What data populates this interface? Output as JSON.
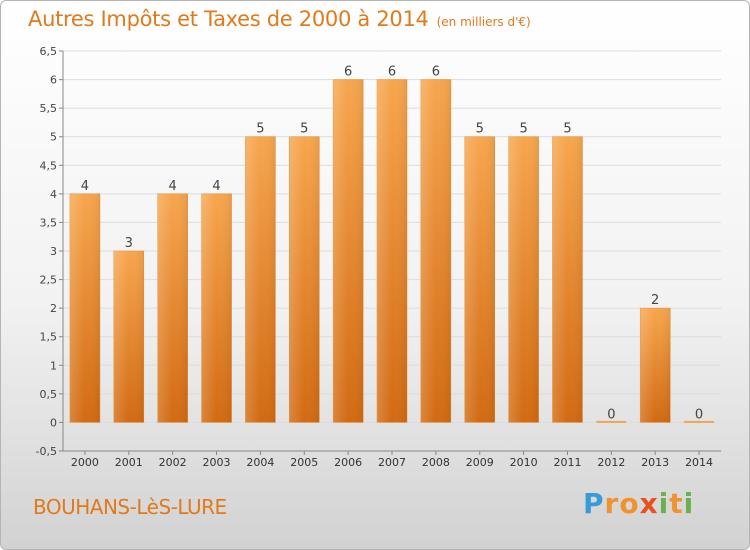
{
  "chart_data": {
    "type": "bar",
    "title": "Autres Impôts et Taxes de 2000 à 2014",
    "subtitle": "(en milliers d'€)",
    "categories": [
      "2000",
      "2001",
      "2002",
      "2003",
      "2004",
      "2005",
      "2006",
      "2007",
      "2008",
      "2009",
      "2010",
      "2011",
      "2012",
      "2013",
      "2014"
    ],
    "values": [
      4,
      3,
      4,
      4,
      5,
      5,
      6,
      6,
      6,
      5,
      5,
      5,
      0,
      2,
      0
    ],
    "data_labels": [
      "4",
      "3",
      "4",
      "4",
      "5",
      "5",
      "6",
      "6",
      "6",
      "5",
      "5",
      "5",
      "0",
      "2",
      "0"
    ],
    "ylim": [
      -0.5,
      6.5
    ],
    "yticks": [
      -0.5,
      0,
      0.5,
      1,
      1.5,
      2,
      2.5,
      3,
      3.5,
      4,
      4.5,
      5,
      5.5,
      6,
      6.5
    ],
    "ytick_labels": [
      "-0,5",
      "0",
      "0,5",
      "1",
      "1,5",
      "2",
      "2,5",
      "3",
      "3,5",
      "4",
      "4,5",
      "5",
      "5,5",
      "6",
      "6,5"
    ],
    "grid": "horizontal",
    "bar_color": "#f0922e"
  },
  "footer": {
    "commune": "BOUHANS-LèS-LURE",
    "brand_letters": [
      "P",
      "r",
      "o",
      "x",
      "i",
      "t",
      "i"
    ],
    "brand_colors": [
      "#3a9ad9",
      "#f0922e",
      "#f0922e",
      "#e8501c",
      "#6ab04c",
      "#f0922e",
      "#6ab04c"
    ]
  }
}
